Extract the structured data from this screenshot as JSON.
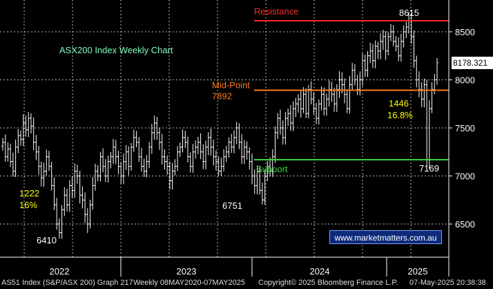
{
  "chart_data": {
    "type": "candlestick",
    "title": "ASX200 Index Weekly Chart",
    "ylim": [
      6150,
      8900
    ],
    "yticks": [
      6500,
      7000,
      7500,
      8000,
      8500
    ],
    "ytick_labels": [
      "6500",
      "7000",
      "7500",
      "8000",
      "8500"
    ],
    "xtick_labels": [
      "2022",
      "2023",
      "2024",
      "2025"
    ],
    "last_price_label": "8178.321",
    "last_price": 8178.321,
    "grid": true,
    "levels": [
      {
        "name": "Resistance",
        "label": "Resistance",
        "value": 8615,
        "color": "#ff2a2a"
      },
      {
        "name": "Mid-Point",
        "label": "Mid-Point",
        "value_label": "7892",
        "value": 7892,
        "color": "#ff7a1a"
      },
      {
        "name": "Support",
        "label": "Support",
        "value": 7169,
        "color": "#37d637"
      }
    ],
    "annotations": [
      {
        "text": "8615",
        "value": 8615,
        "color": "#ffffff"
      },
      {
        "text": "6410",
        "value": 6410,
        "color": "#ffffff"
      },
      {
        "text": "6751",
        "value": 6751,
        "color": "#ffffff"
      },
      {
        "text": "7169",
        "value": 7169,
        "color": "#ffffff"
      },
      {
        "text": "1222",
        "color": "#ffff00"
      },
      {
        "text": "16%",
        "color": "#ffff00"
      },
      {
        "text": "1446",
        "color": "#ffff00"
      },
      {
        "text": "16.8%",
        "color": "#ffff00"
      }
    ],
    "closes": [
      7350,
      7200,
      7280,
      7150,
      7050,
      7300,
      7420,
      7380,
      7550,
      7480,
      7600,
      7520,
      7350,
      7250,
      7100,
      6980,
      7050,
      7200,
      7100,
      6900,
      6700,
      6500,
      6410,
      6650,
      6800,
      6700,
      6900,
      6850,
      7050,
      7000,
      6800,
      6750,
      6600,
      6500,
      6700,
      6900,
      7050,
      7000,
      7200,
      7100,
      7000,
      7150,
      7200,
      7300,
      7200,
      7100,
      7000,
      7150,
      7250,
      7100,
      7300,
      7400,
      7350,
      7200,
      7100,
      7050,
      7150,
      7300,
      7450,
      7550,
      7450,
      7350,
      7200,
      7150,
      7100,
      6950,
      7050,
      7100,
      7250,
      7300,
      7400,
      7350,
      7200,
      7100,
      7250,
      7300,
      7350,
      7250,
      7150,
      7300,
      7400,
      7300,
      7200,
      7150,
      7050,
      7100,
      7200,
      7250,
      7350,
      7300,
      7400,
      7500,
      7350,
      7200,
      7300,
      7250,
      7150,
      7000,
      6900,
      7050,
      6850,
      6751,
      7000,
      7100,
      7050,
      7200,
      7450,
      7600,
      7500,
      7400,
      7600,
      7650,
      7550,
      7700,
      7750,
      7800,
      7700,
      7850,
      7650,
      7900,
      7800,
      7700,
      7600,
      7750,
      7850,
      7700,
      7800,
      7900,
      7850,
      7750,
      7900,
      8000,
      7950,
      7850,
      7700,
      7950,
      8100,
      8000,
      7900,
      8000,
      8200,
      8100,
      8250,
      8300,
      8200,
      8350,
      8300,
      8400,
      8450,
      8300,
      8450,
      8500,
      8400,
      8350,
      8250,
      8400,
      8500,
      8550,
      8615,
      8450,
      8200,
      8000,
      7900,
      7800,
      7950,
      7169,
      7700,
      7900,
      8000,
      8178.321
    ],
    "colors": {
      "bullish": "#ffffff",
      "bearish": "#ffffff",
      "background": "#000000",
      "grid": "#ffffff",
      "label": "#7fd4ff",
      "title": "#7fffbf"
    }
  },
  "source_label": "www.marketmatters.com.au",
  "footer": {
    "security": "AS51 Index (S&P/ASX 200) Graph 217",
    "range": "Weekly 08MAY2020-07MAY2025",
    "copyright": "Copyright© 2025 Bloomberg Finance L.P.",
    "timestamp": "07-May-2025 20:38:38"
  }
}
